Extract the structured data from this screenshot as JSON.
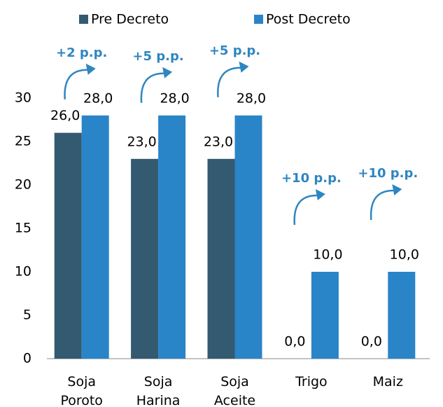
{
  "chart_data": {
    "type": "bar",
    "categories": [
      "Soja Poroto",
      "Soja Harina",
      "Soja Aceite",
      "Trigo",
      "Maiz"
    ],
    "series": [
      {
        "name": "Pre Decreto",
        "color": "#335a70",
        "values": [
          26,
          23,
          23,
          0,
          0
        ],
        "value_labels": [
          "26,0",
          "23,0",
          "23,0",
          "0,0",
          "0,0"
        ]
      },
      {
        "name": "Post Decreto",
        "color": "#2a84c8",
        "values": [
          28,
          28,
          28,
          10,
          10
        ],
        "value_labels": [
          "28,0",
          "28,0",
          "28,0",
          "10,0",
          "10,0"
        ]
      }
    ],
    "annotations": [
      "+2 p.p.",
      "+5 p.p.",
      "+5 p.p.",
      "+10 p.p.",
      "+10 p.p."
    ],
    "annotation_color": "#2e86c1",
    "ylim": [
      0,
      30
    ],
    "yticks": [
      0,
      5,
      10,
      15,
      20,
      25,
      30
    ],
    "grid": false
  }
}
